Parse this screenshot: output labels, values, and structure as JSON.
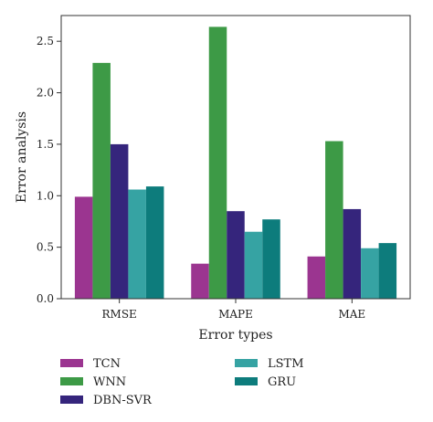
{
  "chart_data": {
    "type": "bar",
    "xlabel": "Error types",
    "ylabel": "Error analysis",
    "categories": [
      "RMSE",
      "MAPE",
      "MAE"
    ],
    "ylim": [
      0,
      2.75
    ],
    "yticks": [
      "0.0",
      "0.5",
      "1.0",
      "1.5",
      "2.0",
      "2.5"
    ],
    "grid": false,
    "legend_position": "bottom",
    "series": [
      {
        "name": "TCN",
        "color": "#9b3590",
        "values": [
          0.99,
          0.34,
          0.41
        ]
      },
      {
        "name": "WNN",
        "color": "#3d9a46",
        "values": [
          2.29,
          2.64,
          1.53
        ]
      },
      {
        "name": "DBN-SVR",
        "color": "#35257c",
        "values": [
          1.5,
          0.85,
          0.87
        ]
      },
      {
        "name": "LSTM",
        "color": "#36a3a3",
        "values": [
          1.06,
          0.65,
          0.49
        ]
      },
      {
        "name": "GRU",
        "color": "#0d7c7c",
        "values": [
          1.09,
          0.77,
          0.54
        ]
      }
    ]
  }
}
